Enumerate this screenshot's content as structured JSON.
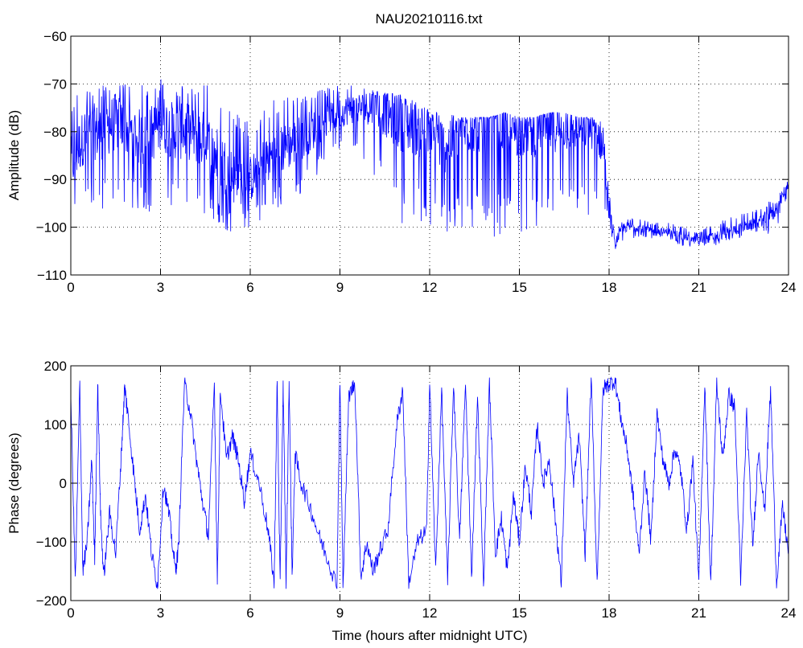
{
  "chart_data": [
    {
      "type": "line",
      "title": "NAU20210116.txt",
      "xlabel": "",
      "ylabel": "Amplitude (dB)",
      "xlim": [
        0,
        24
      ],
      "ylim": [
        -110,
        -60
      ],
      "xticks": [
        "0",
        "3",
        "6",
        "9",
        "12",
        "15",
        "18",
        "21",
        "24"
      ],
      "yticks": [
        "−60",
        "−70",
        "−80",
        "−90",
        "−100",
        "−110"
      ],
      "grid": true,
      "series": [
        {
          "color": "#0000ff",
          "x": [
            0,
            0.5,
            1,
            1.5,
            2,
            2.5,
            3,
            3.5,
            4,
            4.5,
            5,
            5.5,
            6,
            6.5,
            7,
            7.5,
            8,
            8.5,
            9,
            9.5,
            10,
            10.5,
            11,
            11.5,
            12,
            12.5,
            13,
            13.5,
            14,
            14.5,
            15,
            15.5,
            16,
            16.5,
            17,
            17.5,
            17.8,
            18,
            18.2,
            18.5,
            19,
            19.5,
            20,
            20.5,
            21,
            21.5,
            22,
            22.5,
            23,
            23.5,
            24
          ],
          "center": [
            -87,
            -80,
            -80,
            -78,
            -80,
            -82,
            -78,
            -80,
            -80,
            -82,
            -86,
            -90,
            -90,
            -86,
            -84,
            -82,
            -80,
            -78,
            -76,
            -75,
            -75,
            -76,
            -78,
            -79,
            -81,
            -83,
            -80,
            -79,
            -79,
            -79,
            -80,
            -80,
            -79,
            -79,
            -79,
            -79,
            -83,
            -96,
            -103,
            -100,
            -100,
            -101,
            -101,
            -102,
            -103,
            -102,
            -101,
            -100,
            -99,
            -97,
            -91
          ],
          "max": [
            -72,
            -70,
            -70,
            -70,
            -70,
            -70,
            -69,
            -70,
            -70,
            -70,
            -72,
            -76,
            -78,
            -74,
            -73,
            -72,
            -72,
            -71,
            -70,
            -70,
            -71,
            -72,
            -72,
            -73,
            -75,
            -76,
            -77,
            -77,
            -77,
            -76,
            -77,
            -77,
            -76,
            -76,
            -77,
            -77,
            -78,
            -92,
            -100,
            -98,
            -98,
            -99,
            -99,
            -100,
            -101,
            -99,
            -98,
            -97,
            -96,
            -94,
            -90
          ],
          "min": [
            -98,
            -96,
            -97,
            -97,
            -97,
            -97,
            -97,
            -96,
            -97,
            -98,
            -101,
            -101,
            -100,
            -98,
            -96,
            -94,
            -92,
            -86,
            -84,
            -84,
            -87,
            -94,
            -99,
            -100,
            -100,
            -102,
            -101,
            -101,
            -102,
            -102,
            -101,
            -101,
            -100,
            -99,
            -99,
            -98,
            -96,
            -100,
            -105,
            -103,
            -102,
            -103,
            -103,
            -104,
            -104,
            -104,
            -103,
            -102,
            -101,
            -102,
            -93
          ]
        }
      ]
    },
    {
      "type": "line",
      "title": "",
      "xlabel": "Time (hours after midnight UTC)",
      "ylabel": "Phase (degrees)",
      "xlim": [
        0,
        24
      ],
      "ylim": [
        -200,
        200
      ],
      "xticks": [
        "0",
        "3",
        "6",
        "9",
        "12",
        "15",
        "18",
        "21",
        "24"
      ],
      "yticks": [
        "200",
        "100",
        "0",
        "−100",
        "−200"
      ],
      "grid": true,
      "series": [
        {
          "color": "#0000ff",
          "x": [
            0,
            0.15,
            0.3,
            0.4,
            0.55,
            0.7,
            0.8,
            0.9,
            1.0,
            1.1,
            1.3,
            1.5,
            1.7,
            1.8,
            1.9,
            2.1,
            2.3,
            2.5,
            2.7,
            2.9,
            3.1,
            3.3,
            3.5,
            3.6,
            3.8,
            4.0,
            4.2,
            4.4,
            4.6,
            4.8,
            4.9,
            5.0,
            5.2,
            5.4,
            5.6,
            5.8,
            6.0,
            6.3,
            6.6,
            6.8,
            6.9,
            7.0,
            7.1,
            7.2,
            7.3,
            7.4,
            7.5,
            7.7,
            8.0,
            8.3,
            8.6,
            8.9,
            9.0,
            9.1,
            9.3,
            9.5,
            9.7,
            9.9,
            10.1,
            10.3,
            10.6,
            10.9,
            11.1,
            11.3,
            11.6,
            11.9,
            12.0,
            12.2,
            12.4,
            12.6,
            12.8,
            13.0,
            13.2,
            13.4,
            13.6,
            13.8,
            14.0,
            14.2,
            14.4,
            14.6,
            14.8,
            15.0,
            15.2,
            15.4,
            15.6,
            15.8,
            16.0,
            16.2,
            16.4,
            16.6,
            16.8,
            17.0,
            17.2,
            17.4,
            17.6,
            17.8,
            18.0,
            18.2,
            18.4,
            18.6,
            18.8,
            19.0,
            19.2,
            19.4,
            19.6,
            19.8,
            20.0,
            20.2,
            20.4,
            20.6,
            20.8,
            21.0,
            21.2,
            21.4,
            21.6,
            21.8,
            22.0,
            22.2,
            22.4,
            22.6,
            22.8,
            23.0,
            23.2,
            23.4,
            23.6,
            23.8,
            24.0
          ],
          "y": [
            150,
            -170,
            170,
            -150,
            -100,
            40,
            -130,
            170,
            -60,
            -160,
            -50,
            -120,
            60,
            165,
            120,
            20,
            -80,
            -20,
            -120,
            -175,
            0,
            -60,
            -150,
            -110,
            170,
            120,
            40,
            -30,
            -90,
            170,
            -170,
            160,
            40,
            80,
            40,
            -30,
            50,
            0,
            -80,
            -170,
            175,
            -175,
            170,
            -170,
            175,
            -160,
            50,
            0,
            -40,
            -90,
            -130,
            -175,
            175,
            -170,
            150,
            170,
            -160,
            -100,
            -150,
            -120,
            -80,
            100,
            160,
            -170,
            -100,
            -80,
            170,
            -150,
            160,
            -170,
            170,
            -100,
            170,
            -160,
            150,
            -175,
            170,
            -120,
            -60,
            -150,
            -20,
            -100,
            30,
            -50,
            100,
            0,
            40,
            -60,
            -170,
            150,
            0,
            80,
            -120,
            180,
            -170,
            160,
            170,
            175,
            110,
            60,
            -20,
            -120,
            20,
            -100,
            120,
            40,
            0,
            60,
            20,
            -80,
            40,
            -170,
            170,
            -175,
            170,
            40,
            150,
            130,
            -170,
            120,
            -110,
            60,
            -50,
            160,
            -170,
            -40,
            -120
          ]
        }
      ]
    }
  ]
}
